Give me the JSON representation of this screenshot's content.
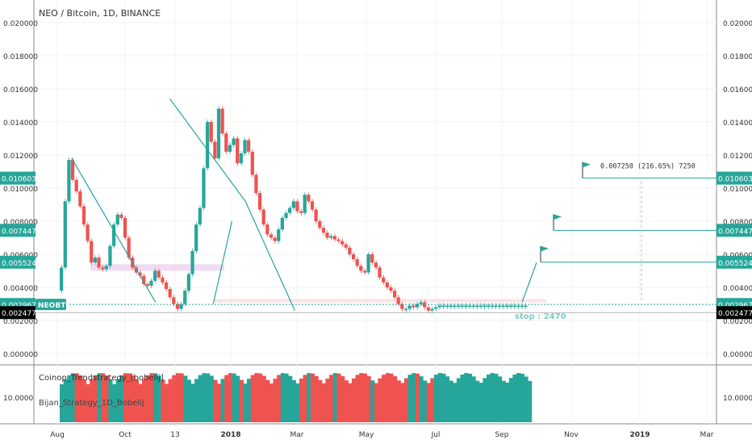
{
  "header": {
    "title": "NEO / Bitcoin, 1D, BINANCE"
  },
  "indicator": {
    "name": "Coinop_Trendstrategy_[bobelij]",
    "name2": "Bijan_Strategy_1D_Bobelij",
    "value": "10.0000"
  },
  "chart_data": {
    "type": "line",
    "title": "NEO / Bitcoin, 1D, BINANCE",
    "symbol": "NEOBTC",
    "x_tick_labels": [
      "Aug",
      "Oct",
      "13",
      "2018",
      "Mar",
      "May",
      "Jul",
      "Sep",
      "Nov",
      "2019",
      "Mar"
    ],
    "y_tick_labels": [
      "0.020000",
      "0.018000",
      "0.016000",
      "0.014000",
      "0.012000",
      "0.010000",
      "0.008000",
      "0.006000",
      "0.004000",
      "0.002000",
      "0.000000"
    ],
    "ylim": [
      -0.0004,
      0.0212
    ],
    "price": {
      "x": [
        0,
        5,
        10,
        15,
        20,
        25,
        30,
        35,
        40,
        45,
        50,
        55,
        60,
        65,
        70,
        75,
        80,
        85,
        90,
        95,
        100,
        105,
        110,
        115,
        120,
        125,
        130,
        135,
        140,
        145,
        150,
        155,
        160,
        165,
        170,
        175,
        180,
        185,
        190,
        195,
        200,
        205,
        210,
        215,
        220,
        225,
        230,
        235,
        240,
        245,
        250,
        255,
        260,
        265,
        270,
        275,
        280,
        285,
        290,
        295,
        300,
        305,
        310,
        315,
        320,
        325,
        330,
        335,
        340,
        345,
        350,
        355,
        360,
        365,
        370,
        375,
        380,
        385,
        390,
        395,
        400,
        405,
        410,
        415,
        420,
        425,
        430,
        435,
        440,
        445,
        450,
        455,
        460,
        465,
        470,
        475,
        480,
        485,
        490,
        495,
        500,
        505,
        510,
        515,
        520,
        525,
        530,
        535,
        540,
        545,
        550,
        555,
        560,
        565,
        570,
        575,
        580,
        585,
        590,
        595,
        600,
        605,
        610,
        615,
        620,
        625
      ],
      "y": [
        0.0038,
        0.0052,
        0.0092,
        0.0117,
        0.0105,
        0.0098,
        0.0089,
        0.0078,
        0.0068,
        0.0055,
        0.0058,
        0.0052,
        0.0051,
        0.0053,
        0.0065,
        0.0078,
        0.0084,
        0.0082,
        0.007,
        0.0058,
        0.0052,
        0.0049,
        0.0047,
        0.0042,
        0.0041,
        0.0044,
        0.005,
        0.0046,
        0.0043,
        0.0039,
        0.0034,
        0.003,
        0.0027,
        0.003,
        0.0038,
        0.0048,
        0.0062,
        0.0078,
        0.0088,
        0.0112,
        0.014,
        0.0128,
        0.0118,
        0.0148,
        0.0133,
        0.0122,
        0.0126,
        0.013,
        0.0115,
        0.0121,
        0.0129,
        0.0122,
        0.0108,
        0.0097,
        0.0087,
        0.0078,
        0.0072,
        0.007,
        0.0068,
        0.0075,
        0.0082,
        0.0085,
        0.0088,
        0.0092,
        0.0086,
        0.0085,
        0.0096,
        0.0092,
        0.0087,
        0.008,
        0.0076,
        0.0073,
        0.007,
        0.0071,
        0.0069,
        0.0068,
        0.0066,
        0.0064,
        0.006,
        0.0057,
        0.0053,
        0.005,
        0.0049,
        0.006,
        0.0055,
        0.0052,
        0.0046,
        0.0043,
        0.004,
        0.0038,
        0.0034,
        0.003,
        0.0027,
        0.0027,
        0.0029,
        0.0028,
        0.003,
        0.0031,
        0.0028,
        0.0026,
        0.0027,
        0.0028,
        0.0029,
        0.0029,
        0.0029,
        0.0029,
        0.0029,
        0.0029,
        0.0029,
        0.0029,
        0.0029,
        0.0029,
        0.0029,
        0.0029,
        0.0029,
        0.0029,
        0.0029,
        0.0029,
        0.0029,
        0.0029,
        0.0029,
        0.0029,
        0.0029,
        0.0029,
        0.0029,
        0.0029
      ]
    },
    "trendlines": [
      {
        "x": [
          16,
          128
        ],
        "y": [
          0.0118,
          0.0031
        ]
      },
      {
        "x": [
          147,
          248
        ],
        "y": [
          0.0154,
          0.0092
        ]
      },
      {
        "x": [
          248,
          314
        ],
        "y": [
          0.0092,
          0.0026
        ]
      }
    ],
    "price_labels": [
      {
        "text": "0.010603",
        "value": 0.010603,
        "color": "#26a69a",
        "target": true
      },
      {
        "text": "0.007447",
        "value": 0.007447,
        "color": "#26a69a",
        "target": true
      },
      {
        "text": "0.005524",
        "value": 0.005524,
        "color": "#26a69a",
        "target": true
      },
      {
        "text": "0.002967",
        "value": 0.002967,
        "color": "#26a69a",
        "target": false
      },
      {
        "text": "0.002477",
        "value": 0.002477,
        "color": "#000000",
        "target": false
      }
    ],
    "annotations": {
      "measure": "0.007250 (216.65%) 7250",
      "stop": "stop : 2470"
    },
    "colors": {
      "up": "#26a69a",
      "down": "#ef5350",
      "trend": "#26a69a",
      "zone": "#e1bee7",
      "zone2": "#ffcdd2"
    }
  }
}
